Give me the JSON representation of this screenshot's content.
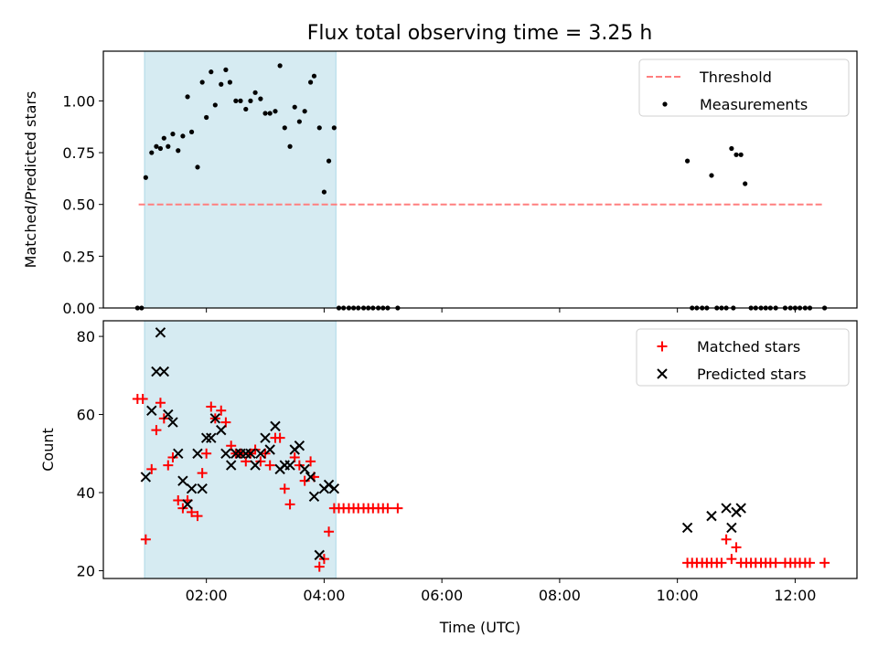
{
  "chart_data": [
    {
      "type": "scatter",
      "title": "Flux total observing time = 3.25 h",
      "xlabel": "",
      "ylabel": "Matched/Predicted stars",
      "ylim": [
        0,
        1.24
      ],
      "y_ticks": [
        0.0,
        0.25,
        0.5,
        0.75,
        1.0
      ],
      "y_tick_labels": [
        "0.00",
        "0.25",
        "0.50",
        "0.75",
        "1.00"
      ],
      "x_unit": "hours UTC",
      "xlim": [
        0.25,
        13.05
      ],
      "highlight_span": [
        0.95,
        4.2
      ],
      "legend_position": "upper right",
      "series": [
        {
          "name": "Threshold",
          "kind": "hline",
          "color": "#ff7f7f",
          "y": 0.5,
          "x_range": [
            0.85,
            12.5
          ]
        },
        {
          "name": "Measurements",
          "kind": "points",
          "color": "#000000",
          "points": [
            [
              0.83,
              0.0
            ],
            [
              0.9,
              0.0
            ],
            [
              0.97,
              0.63
            ],
            [
              1.07,
              0.75
            ],
            [
              1.15,
              0.78
            ],
            [
              1.22,
              0.77
            ],
            [
              1.28,
              0.82
            ],
            [
              1.35,
              0.78
            ],
            [
              1.43,
              0.84
            ],
            [
              1.52,
              0.76
            ],
            [
              1.6,
              0.83
            ],
            [
              1.68,
              1.02
            ],
            [
              1.75,
              0.85
            ],
            [
              1.85,
              0.68
            ],
            [
              1.93,
              1.09
            ],
            [
              2.0,
              0.92
            ],
            [
              2.08,
              1.14
            ],
            [
              2.15,
              0.98
            ],
            [
              2.25,
              1.08
            ],
            [
              2.33,
              1.15
            ],
            [
              2.4,
              1.09
            ],
            [
              2.5,
              1.0
            ],
            [
              2.58,
              1.0
            ],
            [
              2.67,
              0.96
            ],
            [
              2.75,
              1.0
            ],
            [
              2.83,
              1.04
            ],
            [
              2.92,
              1.01
            ],
            [
              3.0,
              0.94
            ],
            [
              3.08,
              0.94
            ],
            [
              3.17,
              0.95
            ],
            [
              3.25,
              1.17
            ],
            [
              3.33,
              0.87
            ],
            [
              3.42,
              0.78
            ],
            [
              3.5,
              0.97
            ],
            [
              3.58,
              0.9
            ],
            [
              3.67,
              0.95
            ],
            [
              3.77,
              1.09
            ],
            [
              3.83,
              1.12
            ],
            [
              3.92,
              0.87
            ],
            [
              4.0,
              0.56
            ],
            [
              4.08,
              0.71
            ],
            [
              4.17,
              0.87
            ],
            [
              4.25,
              0.0
            ],
            [
              4.33,
              0.0
            ],
            [
              4.42,
              0.0
            ],
            [
              4.5,
              0.0
            ],
            [
              4.58,
              0.0
            ],
            [
              4.67,
              0.0
            ],
            [
              4.75,
              0.0
            ],
            [
              4.83,
              0.0
            ],
            [
              4.92,
              0.0
            ],
            [
              5.0,
              0.0
            ],
            [
              5.08,
              0.0
            ],
            [
              5.25,
              0.0
            ],
            [
              10.17,
              0.71
            ],
            [
              10.25,
              0.0
            ],
            [
              10.33,
              0.0
            ],
            [
              10.42,
              0.0
            ],
            [
              10.5,
              0.0
            ],
            [
              10.58,
              0.64
            ],
            [
              10.67,
              0.0
            ],
            [
              10.75,
              0.0
            ],
            [
              10.83,
              0.0
            ],
            [
              10.92,
              0.77
            ],
            [
              10.95,
              0.0
            ],
            [
              11.0,
              0.74
            ],
            [
              11.08,
              0.74
            ],
            [
              11.15,
              0.6
            ],
            [
              11.25,
              0.0
            ],
            [
              11.33,
              0.0
            ],
            [
              11.42,
              0.0
            ],
            [
              11.5,
              0.0
            ],
            [
              11.58,
              0.0
            ],
            [
              11.67,
              0.0
            ],
            [
              11.83,
              0.0
            ],
            [
              11.92,
              0.0
            ],
            [
              12.0,
              0.0
            ],
            [
              12.08,
              0.0
            ],
            [
              12.17,
              0.0
            ],
            [
              12.25,
              0.0
            ],
            [
              12.5,
              0.0
            ]
          ]
        }
      ]
    },
    {
      "type": "scatter",
      "title": "",
      "xlabel": "Time (UTC)",
      "ylabel": "Count",
      "ylim": [
        18,
        84
      ],
      "y_ticks": [
        20,
        40,
        60,
        80
      ],
      "y_tick_labels": [
        "20",
        "40",
        "60",
        "80"
      ],
      "x_unit": "hours UTC",
      "xlim": [
        0.25,
        13.05
      ],
      "x_ticks": [
        2,
        4,
        6,
        8,
        10,
        12
      ],
      "x_tick_labels": [
        "02:00",
        "04:00",
        "06:00",
        "08:00",
        "10:00",
        "12:00"
      ],
      "highlight_span": [
        0.95,
        4.2
      ],
      "legend_position": "upper right",
      "series": [
        {
          "name": "Matched stars",
          "kind": "plus",
          "color": "#ff0000",
          "points": [
            [
              0.83,
              64
            ],
            [
              0.92,
              64
            ],
            [
              0.97,
              28
            ],
            [
              1.07,
              46
            ],
            [
              1.15,
              56
            ],
            [
              1.22,
              63
            ],
            [
              1.28,
              59
            ],
            [
              1.35,
              47
            ],
            [
              1.43,
              49
            ],
            [
              1.52,
              38
            ],
            [
              1.6,
              36
            ],
            [
              1.68,
              38
            ],
            [
              1.75,
              35
            ],
            [
              1.85,
              34
            ],
            [
              1.93,
              45
            ],
            [
              2.0,
              50
            ],
            [
              2.08,
              62
            ],
            [
              2.15,
              59
            ],
            [
              2.25,
              61
            ],
            [
              2.33,
              58
            ],
            [
              2.42,
              52
            ],
            [
              2.5,
              50
            ],
            [
              2.58,
              50
            ],
            [
              2.67,
              48
            ],
            [
              2.75,
              50
            ],
            [
              2.83,
              51
            ],
            [
              2.92,
              48
            ],
            [
              3.0,
              50
            ],
            [
              3.08,
              47
            ],
            [
              3.17,
              54
            ],
            [
              3.25,
              54
            ],
            [
              3.33,
              41
            ],
            [
              3.42,
              37
            ],
            [
              3.5,
              49
            ],
            [
              3.58,
              47
            ],
            [
              3.67,
              43
            ],
            [
              3.77,
              48
            ],
            [
              3.83,
              44
            ],
            [
              3.92,
              21
            ],
            [
              4.0,
              23
            ],
            [
              4.08,
              30
            ],
            [
              4.17,
              36
            ],
            [
              4.25,
              36
            ],
            [
              4.33,
              36
            ],
            [
              4.42,
              36
            ],
            [
              4.5,
              36
            ],
            [
              4.58,
              36
            ],
            [
              4.67,
              36
            ],
            [
              4.75,
              36
            ],
            [
              4.83,
              36
            ],
            [
              4.92,
              36
            ],
            [
              5.0,
              36
            ],
            [
              5.08,
              36
            ],
            [
              5.25,
              36
            ],
            [
              10.17,
              22
            ],
            [
              10.25,
              22
            ],
            [
              10.33,
              22
            ],
            [
              10.42,
              22
            ],
            [
              10.5,
              22
            ],
            [
              10.58,
              22
            ],
            [
              10.67,
              22
            ],
            [
              10.75,
              22
            ],
            [
              10.83,
              28
            ],
            [
              10.92,
              23
            ],
            [
              11.0,
              26
            ],
            [
              11.08,
              22
            ],
            [
              11.17,
              22
            ],
            [
              11.25,
              22
            ],
            [
              11.33,
              22
            ],
            [
              11.42,
              22
            ],
            [
              11.5,
              22
            ],
            [
              11.58,
              22
            ],
            [
              11.67,
              22
            ],
            [
              11.83,
              22
            ],
            [
              11.92,
              22
            ],
            [
              12.0,
              22
            ],
            [
              12.08,
              22
            ],
            [
              12.17,
              22
            ],
            [
              12.25,
              22
            ],
            [
              12.5,
              22
            ]
          ]
        },
        {
          "name": "Predicted stars",
          "kind": "cross",
          "color": "#000000",
          "points": [
            [
              0.97,
              44
            ],
            [
              1.07,
              61
            ],
            [
              1.15,
              71
            ],
            [
              1.22,
              81
            ],
            [
              1.28,
              71
            ],
            [
              1.35,
              60
            ],
            [
              1.43,
              58
            ],
            [
              1.52,
              50
            ],
            [
              1.6,
              43
            ],
            [
              1.68,
              37
            ],
            [
              1.75,
              41
            ],
            [
              1.85,
              50
            ],
            [
              1.93,
              41
            ],
            [
              2.0,
              54
            ],
            [
              2.08,
              54
            ],
            [
              2.15,
              59
            ],
            [
              2.25,
              56
            ],
            [
              2.33,
              50
            ],
            [
              2.42,
              47
            ],
            [
              2.5,
              50
            ],
            [
              2.58,
              50
            ],
            [
              2.67,
              50
            ],
            [
              2.75,
              50
            ],
            [
              2.83,
              47
            ],
            [
              2.92,
              50
            ],
            [
              3.0,
              54
            ],
            [
              3.08,
              51
            ],
            [
              3.17,
              57
            ],
            [
              3.25,
              46
            ],
            [
              3.33,
              47
            ],
            [
              3.42,
              47
            ],
            [
              3.5,
              51
            ],
            [
              3.58,
              52
            ],
            [
              3.67,
              46
            ],
            [
              3.77,
              44
            ],
            [
              3.83,
              39
            ],
            [
              3.92,
              24
            ],
            [
              4.0,
              41
            ],
            [
              4.08,
              42
            ],
            [
              4.17,
              41
            ],
            [
              10.17,
              31
            ],
            [
              10.58,
              34
            ],
            [
              10.83,
              36
            ],
            [
              10.92,
              31
            ],
            [
              11.0,
              35
            ],
            [
              11.08,
              36
            ]
          ]
        }
      ]
    }
  ]
}
